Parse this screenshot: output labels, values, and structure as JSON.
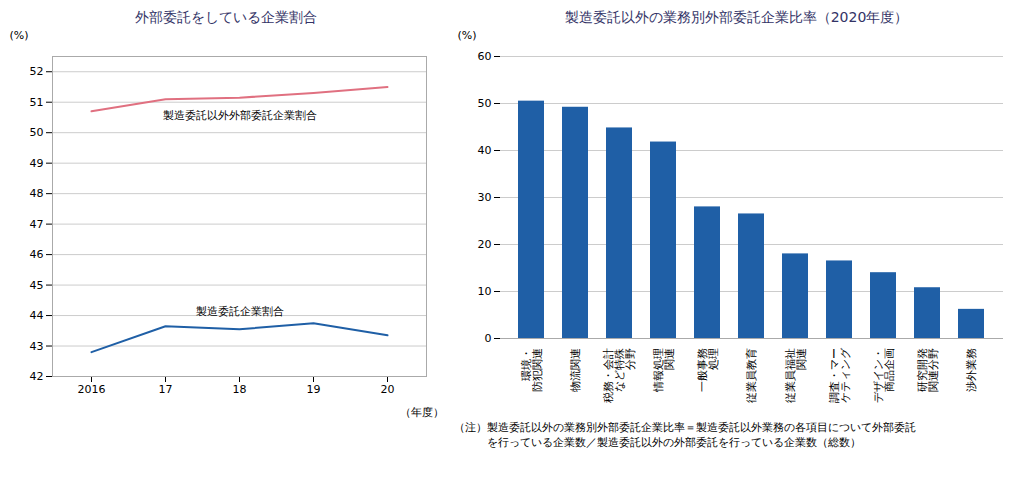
{
  "chart_data": [
    {
      "type": "line",
      "title": "外部委託をしている企業割合",
      "xlabel": "（年度）",
      "ylabel": "(%)",
      "categories": [
        "2016",
        "17",
        "18",
        "19",
        "20"
      ],
      "series": [
        {
          "color": "#e07080",
          "values": [
            50.7,
            51.1,
            51.15,
            51.3,
            51.5
          ]
        },
        {
          "color": "#1f5fa6",
          "values": [
            42.8,
            43.65,
            43.55,
            43.75,
            43.35
          ]
        }
      ],
      "annotations": [
        "製造委託以外外部委託企業割合",
        "製造委託企業割合"
      ],
      "ylim": [
        42.0,
        52.5
      ],
      "yticks": [
        42,
        43,
        44,
        45,
        46,
        47,
        48,
        49,
        50,
        51,
        52
      ],
      "grid": true
    },
    {
      "type": "bar",
      "title": "製造委託以外の業務別外部委託企業比率（2020年度）",
      "ylabel": "(%)",
      "categories": [
        "環境・\n防犯関連",
        "物流関連",
        "税務・会計\nなど特殊\n分野",
        "情報処理\n関連",
        "一般事務\n処理",
        "従業員教育",
        "従業員福祉\n関連",
        "調査・マー\nケティング",
        "デザイン・\n商品企画",
        "研究開発\n関連分野",
        "渉外業務"
      ],
      "values": [
        50.5,
        49.2,
        44.8,
        41.8,
        28.0,
        26.5,
        18.0,
        16.5,
        14.0,
        10.8,
        6.2
      ],
      "color": "#1f5fa6",
      "ylim": [
        0,
        60
      ],
      "yticks": [
        0,
        10,
        20,
        30,
        40,
        50,
        60
      ],
      "grid": true,
      "note": "（注）製造委託以外の業務別外部委託企業比率＝製造委託以外業務の各項目について外部委託\n　　　を行っている企業数／製造委託以外の外部委託を行っている企業数（総数）"
    }
  ]
}
